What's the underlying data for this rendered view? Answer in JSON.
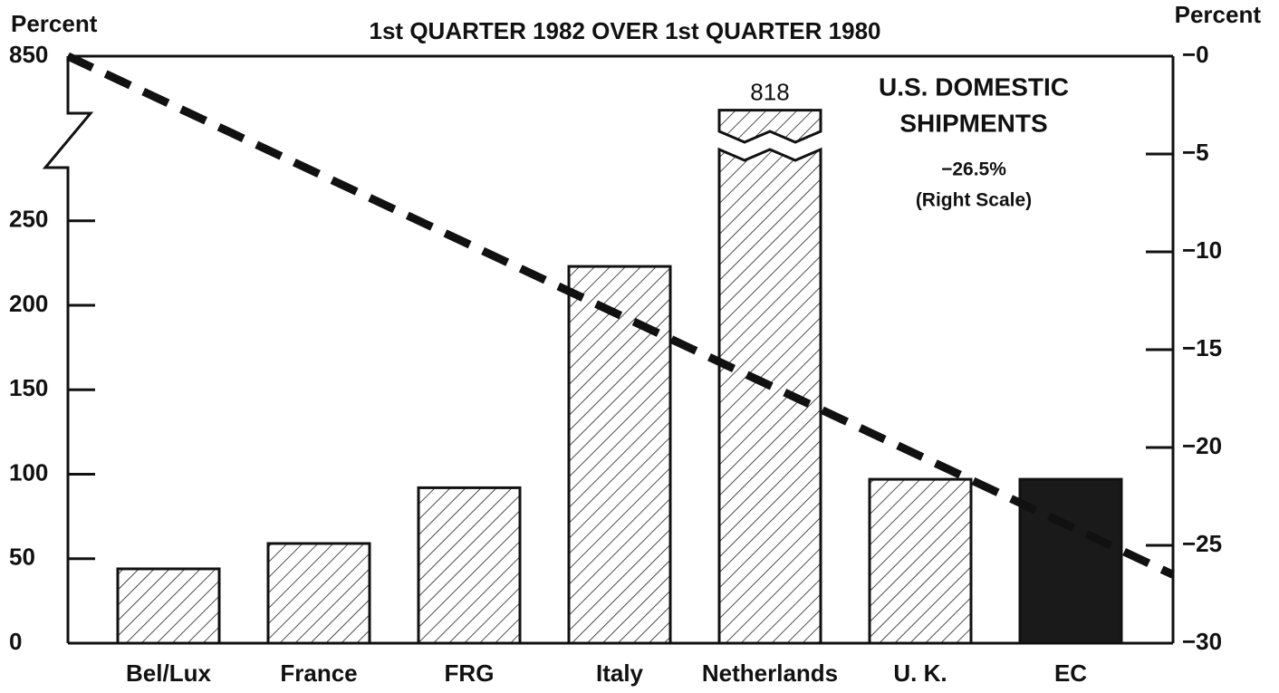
{
  "chart_data": {
    "type": "bar",
    "title": "1st QUARTER 1982 OVER 1st QUARTER 1980",
    "y_label": "Percent",
    "y2_label": "Percent",
    "categories": [
      "Bel/Lux",
      "France",
      "FRG",
      "Italy",
      "Netherlands",
      "U. K.",
      "EC"
    ],
    "values": [
      44,
      59,
      92,
      223,
      818,
      97,
      97
    ],
    "value_labels": [
      null,
      null,
      null,
      null,
      "818",
      null,
      null
    ],
    "bar_colors": [
      "hatch",
      "hatch",
      "hatch",
      "hatch",
      "hatch",
      "hatch",
      "#1a1a1a"
    ],
    "ylim": [
      0,
      850
    ],
    "yticks": [
      0,
      50,
      100,
      150,
      200,
      250,
      850
    ],
    "axis_break": true,
    "y2lim": [
      -30,
      0
    ],
    "y2ticks": [
      {
        "value": 0,
        "label": "−0"
      },
      {
        "value": -5,
        "label": "−5"
      },
      {
        "value": -10,
        "label": "−10"
      },
      {
        "value": -15,
        "label": "−15"
      },
      {
        "value": -20,
        "label": "−20"
      },
      {
        "value": -25,
        "label": "−25"
      },
      {
        "value": -30,
        "label": "−30"
      }
    ],
    "line": {
      "axis": "y2",
      "color": "#111",
      "label": [
        "U.S. DOMESTIC",
        "SHIPMENTS"
      ],
      "values": [
        0,
        -26.5
      ],
      "value_labels": [
        null,
        "−26.5%"
      ],
      "note": "(Right Scale)"
    }
  }
}
